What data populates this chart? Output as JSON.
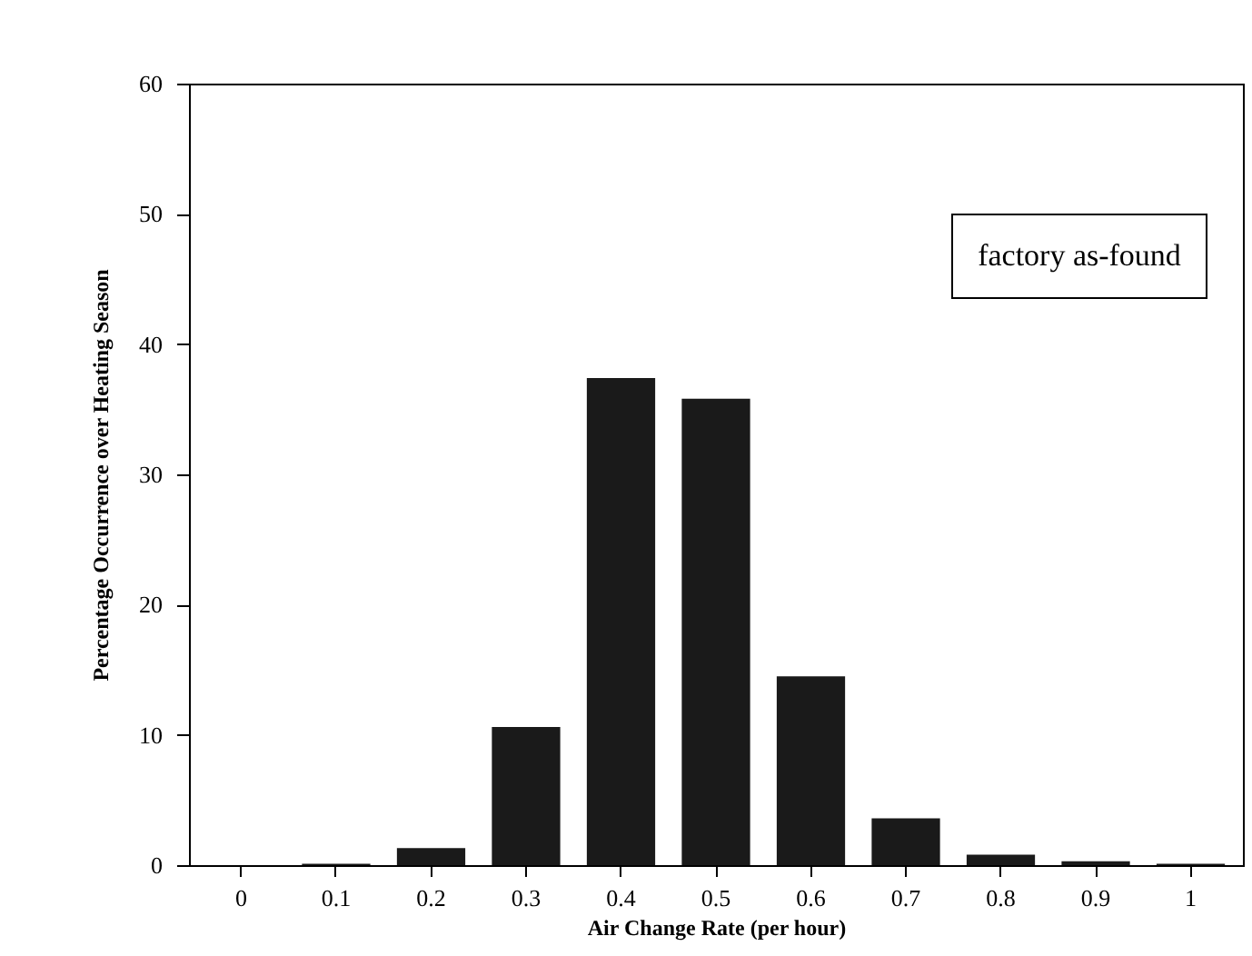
{
  "chart_data": {
    "type": "bar",
    "xlabel": "Air Change Rate (per hour)",
    "ylabel": "Percentage Occurrence over Heating Season",
    "categories": [
      "0",
      "0.1",
      "0.2",
      "0.3",
      "0.4",
      "0.5",
      "0.6",
      "0.7",
      "0.8",
      "0.9",
      "1"
    ],
    "values": [
      0,
      0.1,
      1.3,
      10.6,
      37.4,
      35.8,
      14.5,
      3.6,
      0.8,
      0.3,
      0.1
    ],
    "color": "#1a1a1a",
    "ylim": [
      0,
      60
    ],
    "yticks": [
      0,
      10,
      20,
      30,
      40,
      50,
      60
    ],
    "grid": false,
    "annotations": [
      "factory as-found"
    ]
  }
}
